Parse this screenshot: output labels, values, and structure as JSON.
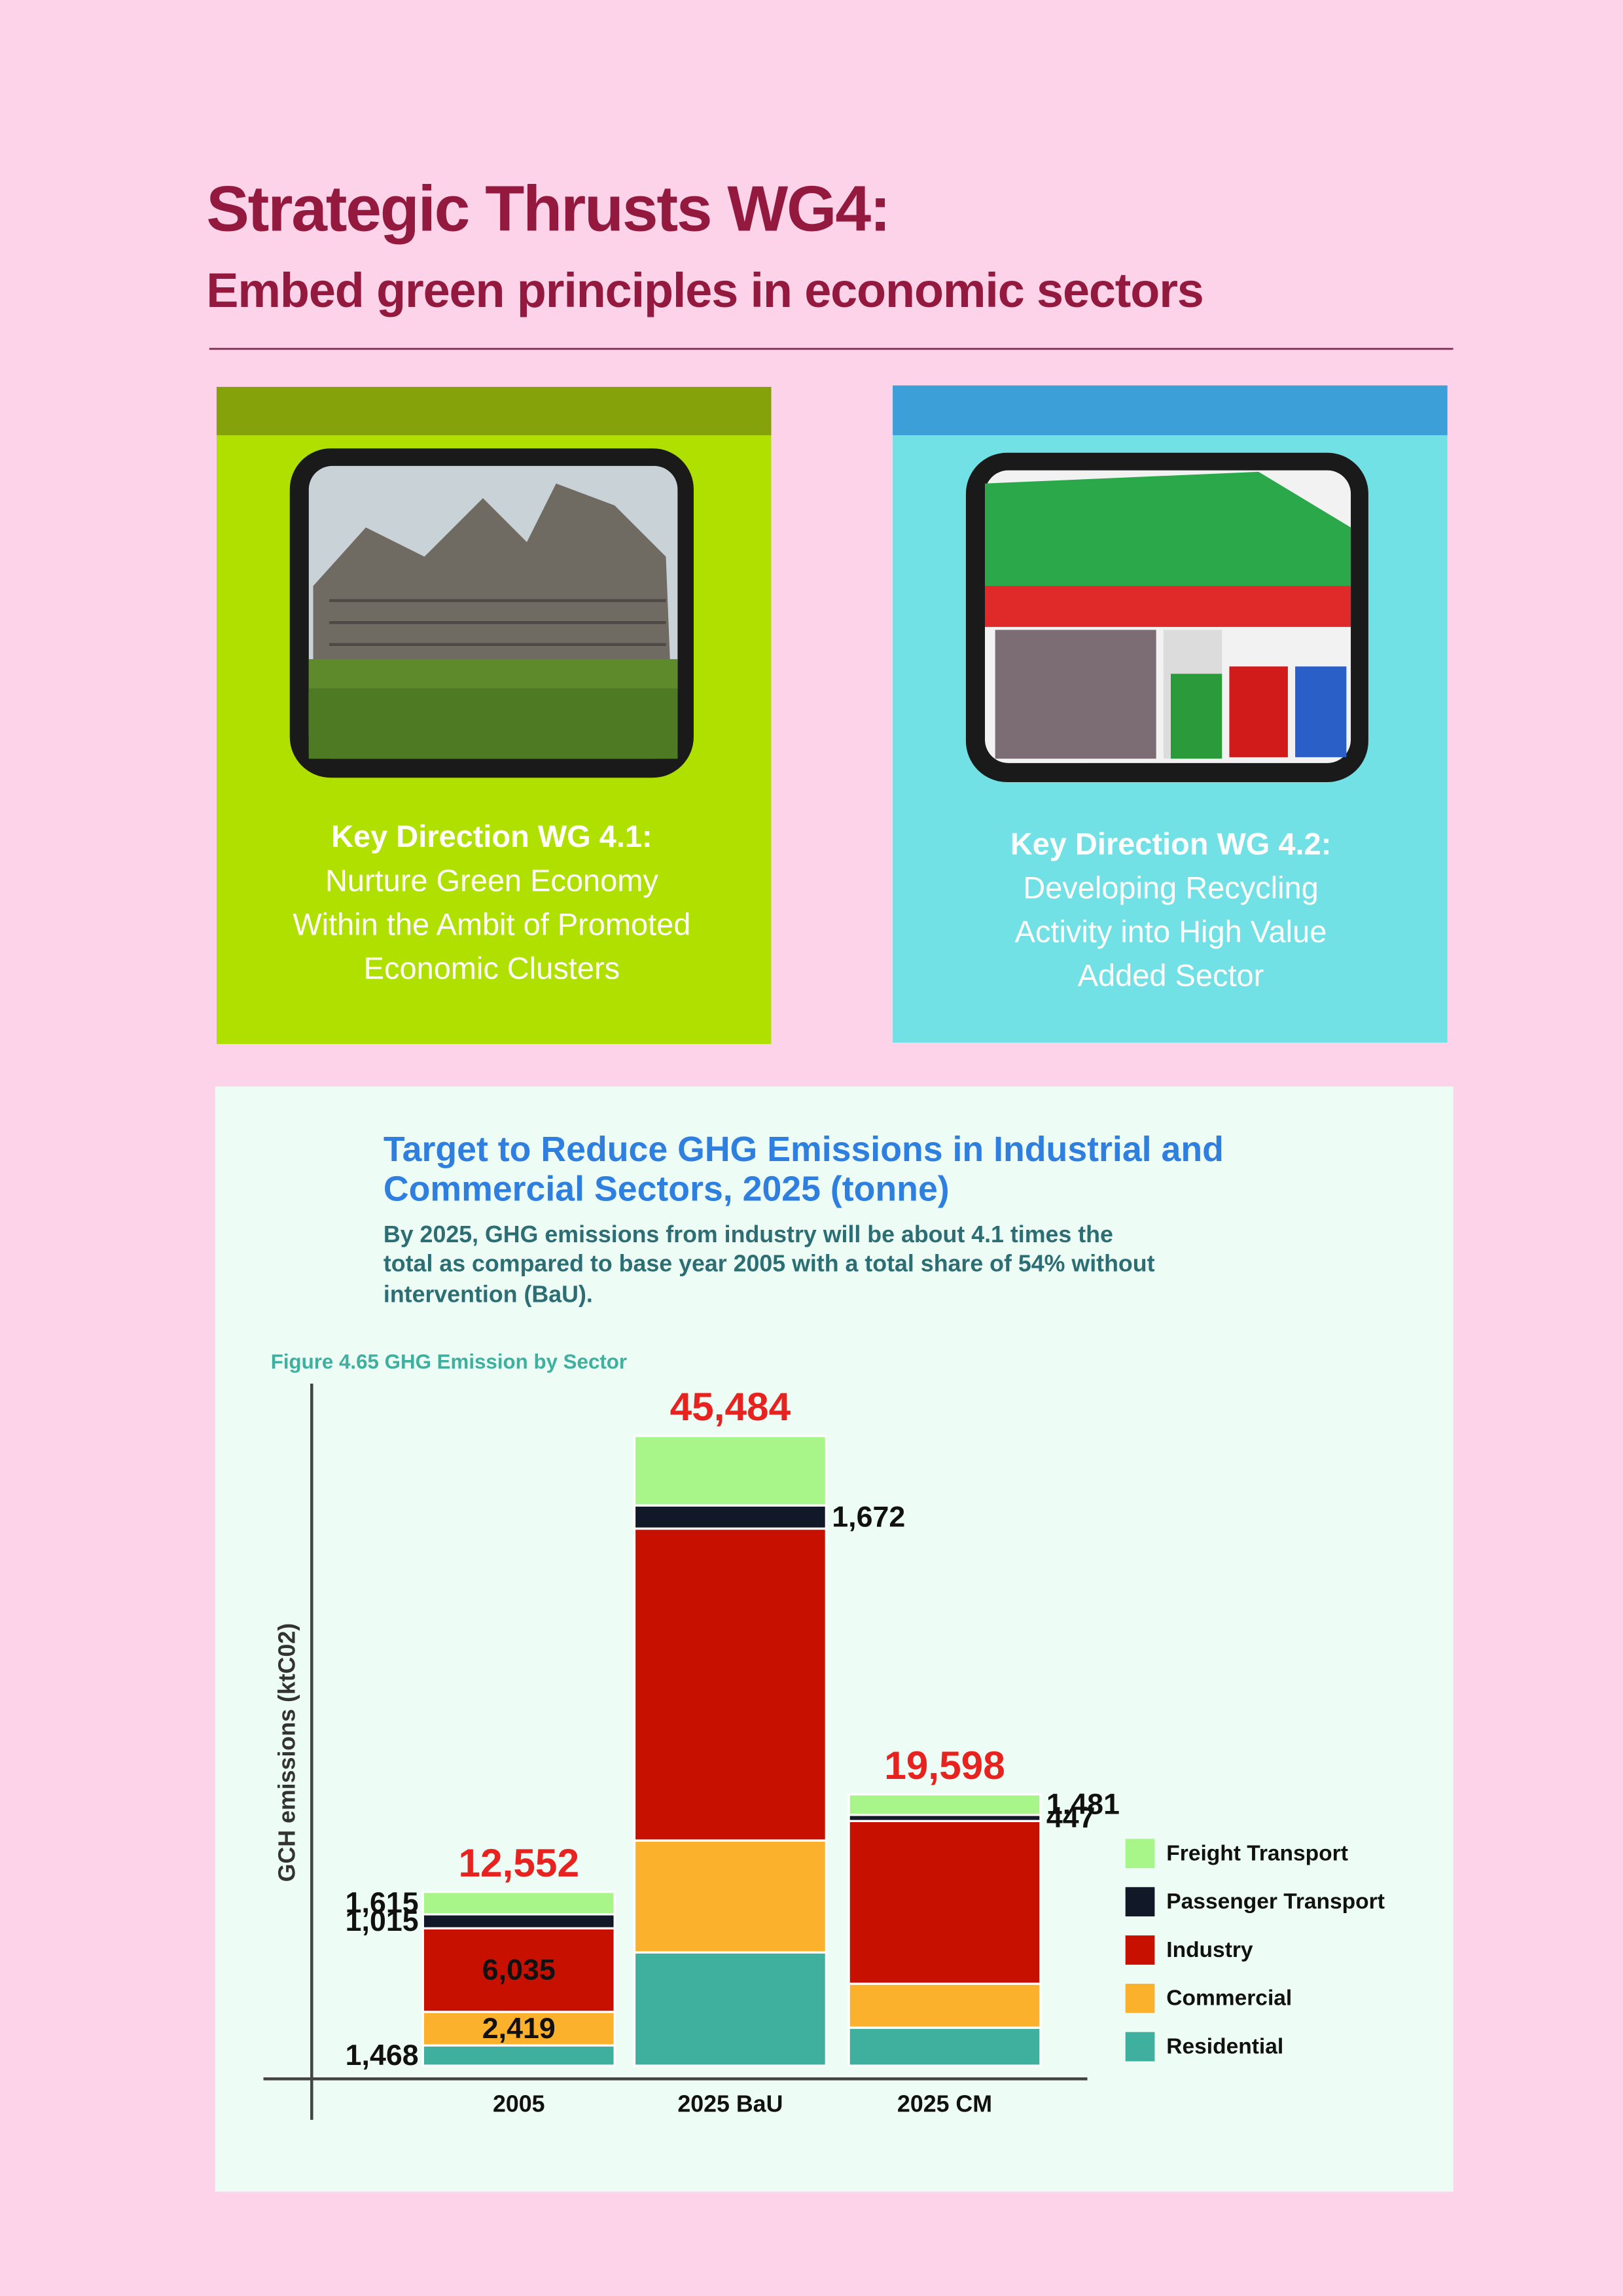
{
  "header": {
    "title": "Strategic Thrusts WG4:",
    "subtitle": "Embed green principles in economic sectors"
  },
  "cards": [
    {
      "heading": "Key Direction WG 4.1:",
      "lines": [
        "Nurture Green Economy",
        "Within the Ambit of Promoted",
        "Economic Clusters"
      ]
    },
    {
      "heading": "Key Direction WG 4.2:",
      "lines": [
        "Developing Recycling",
        "Activity into High Value",
        "Added Sector"
      ]
    }
  ],
  "chart_data": {
    "type": "stacked-bar",
    "title": [
      "Target to Reduce GHG Emissions in Industrial and",
      "Commercial Sectors, 2025 (tonne)"
    ],
    "subtitle": [
      "By 2025, GHG emissions from industry will be about 4.1 times the",
      "total as compared to base year 2005 with a total share of 54% without",
      "intervention (BaU)."
    ],
    "caption": "Figure 4.65 GHG Emission by Sector",
    "y_label": "GCH emissions (ktC02)",
    "categories": [
      "2005",
      "2025 BaU",
      "2025 CM"
    ],
    "ylim": [
      0,
      50000
    ],
    "totals": [
      12552,
      45484,
      19598
    ],
    "total_labels": [
      "12,552",
      "45,484",
      "19,598"
    ],
    "total_color": "#e8231f",
    "series": [
      {
        "name": "Residential",
        "color": "#3fb09d",
        "values": [
          1468,
          8185,
          2745
        ],
        "value_labels": [
          "1,468",
          null,
          null
        ]
      },
      {
        "name": "Commercial",
        "color": "#fbb12b",
        "values": [
          2419,
          8077,
          3174
        ],
        "value_labels": [
          "2,419",
          null,
          null
        ]
      },
      {
        "name": "Industry",
        "color": "#c81000",
        "values": [
          6035,
          22530,
          11751
        ],
        "value_labels": [
          "6,035",
          null,
          null
        ]
      },
      {
        "name": "Passenger Transport",
        "color": "#111827",
        "values": [
          1015,
          1672,
          447
        ],
        "value_labels": [
          "1,015",
          "1,672",
          "447"
        ]
      },
      {
        "name": "Freight Transport",
        "color": "#a8f58a",
        "values": [
          1615,
          5020,
          1481
        ],
        "value_labels": [
          "1,615",
          null,
          "1,481"
        ]
      }
    ]
  }
}
